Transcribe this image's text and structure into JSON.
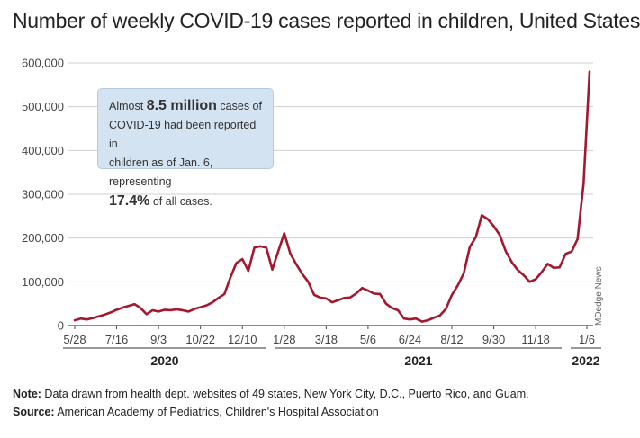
{
  "chart_data": {
    "type": "line",
    "title": "Number of weekly COVID-19 cases reported in children, United States",
    "ylim": [
      0,
      600000
    ],
    "yticks": [
      0,
      100000,
      200000,
      300000,
      400000,
      500000,
      600000
    ],
    "ytick_labels": [
      "0",
      "100,000",
      "200,000",
      "300,000",
      "400,000",
      "500,000",
      "600,000"
    ],
    "xtick_labels": [
      "5/28",
      "7/16",
      "9/3",
      "10/22",
      "12/10",
      "1/28",
      "3/18",
      "5/6",
      "6/24",
      "8/12",
      "9/30",
      "11/18",
      "1/6"
    ],
    "years": [
      "2020",
      "2021",
      "2022"
    ],
    "series": [
      {
        "values": [
          12000,
          16000,
          14000,
          17000,
          21000,
          25000,
          30000,
          36000,
          41000,
          45000,
          49000,
          40000,
          26000,
          35000,
          32000,
          36000,
          35000,
          37000,
          35000,
          32000,
          38000,
          42000,
          46000,
          53000,
          63000,
          72000,
          110000,
          143000,
          152000,
          125000,
          178000,
          181000,
          178000,
          128000,
          170000,
          211000,
          165000,
          140000,
          118000,
          100000,
          70000,
          64000,
          62000,
          53000,
          58000,
          63000,
          64000,
          73000,
          86000,
          80000,
          73000,
          72000,
          50000,
          40000,
          35000,
          16000,
          14000,
          16000,
          9000,
          12000,
          18000,
          23000,
          38000,
          70000,
          92000,
          120000,
          180000,
          202000,
          252000,
          243000,
          227000,
          207000,
          170000,
          145000,
          127000,
          115000,
          100000,
          106000,
          122000,
          141000,
          132000,
          133000,
          164000,
          169000,
          198000,
          325000,
          580000
        ],
        "color": "#a3182f"
      }
    ],
    "callout": {
      "pre": "Almost ",
      "stat1": "8.5 million",
      "mid1": " cases of",
      "line2": "COVID-19 had been reported in",
      "line3": "children as of Jan. 6, representing",
      "stat2": "17.4%",
      "post": " of all cases."
    },
    "credit": "MDedge News"
  },
  "notes": {
    "note_label": "Note:",
    "note_text": " Data drawn from health dept. websites of 49 states, New York City, D.C., Puerto Rico, and Guam.",
    "source_label": "Source:",
    "source_text": " American Academy of Pediatrics, Children's Hospital Association"
  }
}
